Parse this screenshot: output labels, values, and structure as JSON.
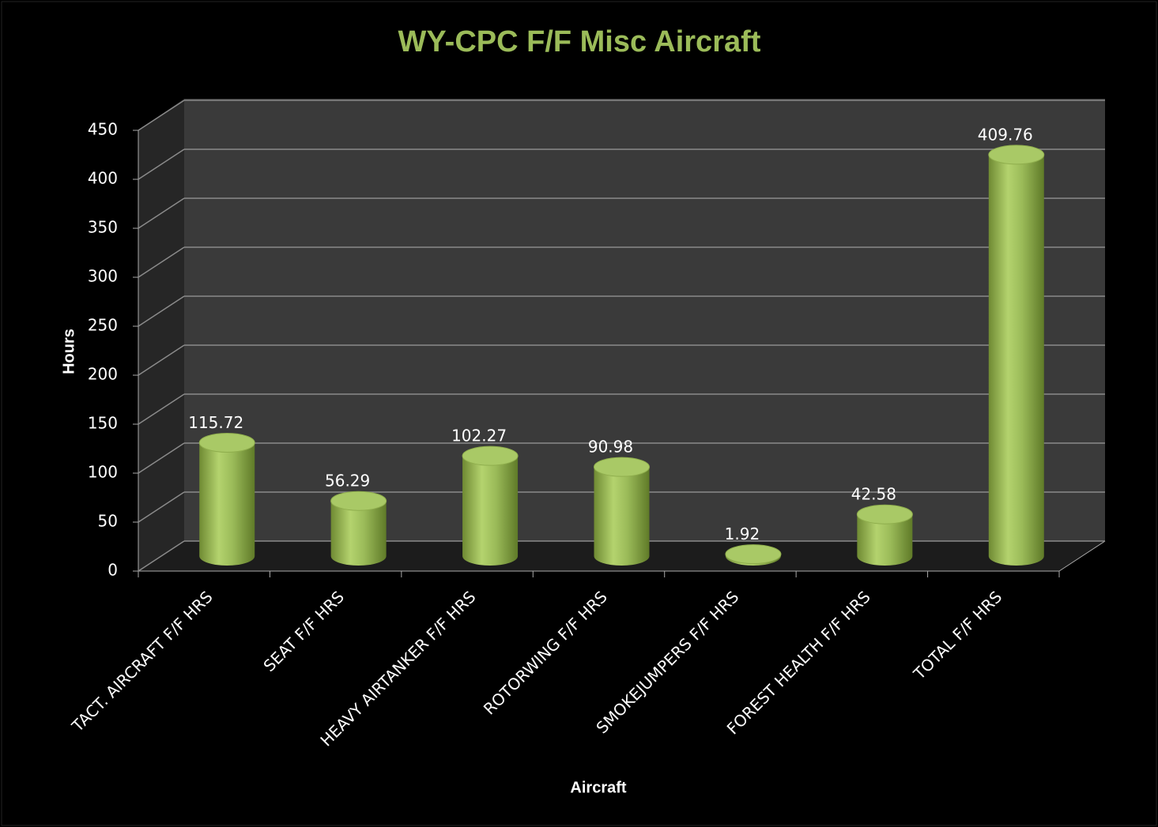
{
  "chart_data": {
    "type": "bar3d",
    "title": "WY-CPC F/F Misc Aircraft",
    "x_label": "Aircraft",
    "y_label": "Hours",
    "categories": [
      "TACT. AIRCRAFT F/F HRS",
      "SEAT F/F HRS",
      "HEAVY AIRTANKER F/F HRS",
      "ROTORWING F/F HRS",
      "SMOKEJUMPERS F/F HRS",
      "FOREST HEALTH F/F HRS",
      "TOTAL F/F HRS"
    ],
    "values": [
      115.72,
      56.29,
      102.27,
      90.98,
      1.92,
      42.58,
      409.76
    ],
    "color": "#9bbb59",
    "ylim": [
      0,
      450
    ],
    "yticks": [
      0,
      50,
      100,
      150,
      200,
      250,
      300,
      350,
      400,
      450
    ],
    "grid": true
  }
}
